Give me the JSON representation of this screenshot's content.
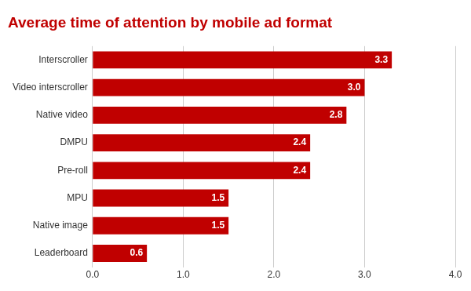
{
  "chart_data": {
    "type": "bar",
    "orientation": "horizontal",
    "title": "Average time of attention by mobile ad format",
    "categories": [
      "Interscroller",
      "Video interscroller",
      "Native video",
      "DMPU",
      "Pre-roll",
      "MPU",
      "Native image",
      "Leaderboard"
    ],
    "values": [
      3.3,
      3.0,
      2.8,
      2.4,
      2.4,
      1.5,
      1.5,
      0.6
    ],
    "value_labels": [
      "3.3",
      "3.0",
      "2.8",
      "2.4",
      "2.4",
      "1.5",
      "1.5",
      "0.6"
    ],
    "data_labels": true,
    "color": "#c00000",
    "xlim": [
      0,
      4
    ],
    "xticks": [
      {
        "value": 0,
        "label": "0.0"
      },
      {
        "value": 1,
        "label": "1.0"
      },
      {
        "value": 2,
        "label": "2.0"
      },
      {
        "value": 3,
        "label": "3.0"
      },
      {
        "value": 4,
        "label": "4.0"
      }
    ],
    "grid": true
  }
}
